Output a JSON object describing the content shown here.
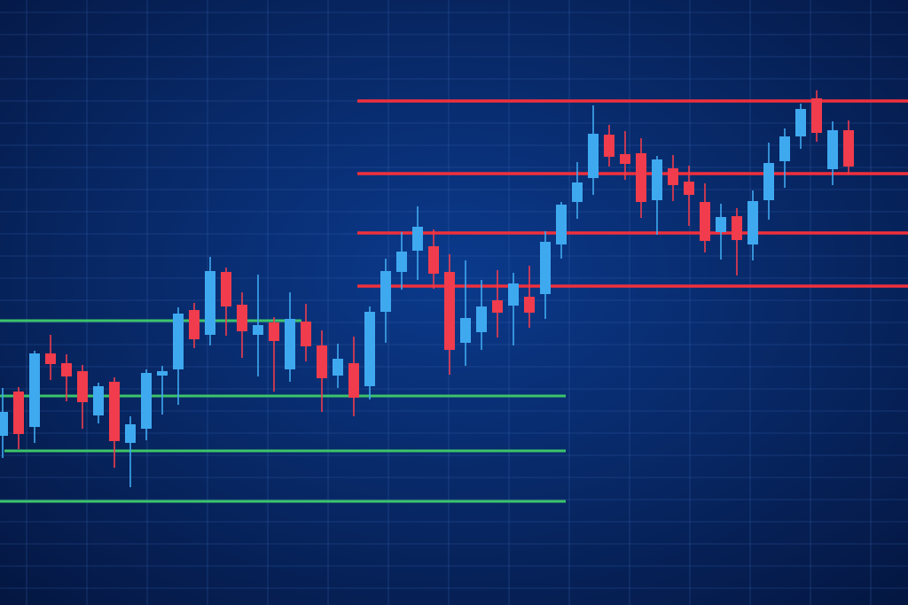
{
  "chart_data": {
    "type": "candlestick",
    "title": "",
    "xlabel": "",
    "ylabel": "",
    "ylim": [
      0,
      120
    ],
    "grid": true,
    "legend": "none",
    "colors": {
      "background_center": "#0b3a8c",
      "background_edge": "#041640",
      "grid": "#3d6bb8",
      "up": "#3fa9f0",
      "down": "#f03c4c",
      "resistance": "#f0303c",
      "support": "#3cc46a"
    },
    "candles_ohlc": [
      [
        21.6,
        32.4,
        16.6,
        27
      ],
      [
        31.6,
        32.6,
        18.6,
        22
      ],
      [
        23.6,
        40.8,
        20,
        40.2
      ],
      [
        40.2,
        44.4,
        34.2,
        37.8
      ],
      [
        38,
        40,
        29.4,
        35
      ],
      [
        36.2,
        37.6,
        23.2,
        29.2
      ],
      [
        26.2,
        33.6,
        24.4,
        32.8
      ],
      [
        33.8,
        34.8,
        14.4,
        20.4
      ],
      [
        20,
        26,
        10,
        24.2
      ],
      [
        23.2,
        36.6,
        20.6,
        35.8
      ],
      [
        35.2,
        37.4,
        26.4,
        36.2
      ],
      [
        36.6,
        50.6,
        28.6,
        49.2
      ],
      [
        50,
        51.6,
        41.4,
        43.4
      ],
      [
        44.4,
        62,
        42,
        58.8
      ],
      [
        58.6,
        59.6,
        44.2,
        50.8
      ],
      [
        51.2,
        54,
        39.2,
        45.2
      ],
      [
        44.4,
        58,
        35,
        46.6
      ],
      [
        47.2,
        48.4,
        31.6,
        43
      ],
      [
        36.6,
        54,
        33.8,
        48
      ],
      [
        47.4,
        51.4,
        38.4,
        41.8
      ],
      [
        42,
        45.4,
        27,
        34.6
      ],
      [
        35.2,
        42.4,
        32.4,
        39
      ],
      [
        38,
        44,
        26,
        30.2
      ],
      [
        32.8,
        50.8,
        29.8,
        49.6
      ],
      [
        49.6,
        61.6,
        42.6,
        58.8
      ],
      [
        58.6,
        67.6,
        54.6,
        63.2
      ],
      [
        63.4,
        73.4,
        56.8,
        68.8
      ],
      [
        64.4,
        68.2,
        54.8,
        58.2
      ],
      [
        58.6,
        62.6,
        35.4,
        41
      ],
      [
        42.6,
        61.2,
        37.4,
        48.2
      ],
      [
        45,
        56.8,
        41,
        50.8
      ],
      [
        52.2,
        59,
        43.8,
        49.4
      ],
      [
        51,
        58.4,
        42,
        56
      ],
      [
        53,
        60,
        46,
        49.4
      ],
      [
        53.6,
        67.8,
        48,
        65.4
      ],
      [
        64.8,
        74.4,
        61.6,
        73.8
      ],
      [
        74.4,
        83.4,
        70.6,
        78.8
      ],
      [
        79.8,
        96.2,
        76,
        89.8
      ],
      [
        89.6,
        91.8,
        82.4,
        84.6
      ],
      [
        85.2,
        90.4,
        79.4,
        83
      ],
      [
        85.4,
        88.8,
        70.8,
        74.4
      ],
      [
        74.8,
        84.8,
        67,
        84
      ],
      [
        82,
        85,
        74.6,
        78.2
      ],
      [
        79,
        82.6,
        69,
        76
      ],
      [
        74.4,
        78.6,
        63,
        65.6
      ],
      [
        67.6,
        74,
        61.4,
        71
      ],
      [
        71.2,
        73,
        57.8,
        65.8
      ],
      [
        64.8,
        77,
        61.2,
        74.6
      ],
      [
        74.8,
        87.8,
        70.4,
        83.2
      ],
      [
        83.6,
        91,
        77.6,
        89.2
      ],
      [
        89.2,
        96.6,
        86.4,
        95.4
      ],
      [
        97.8,
        99.6,
        88,
        90
      ],
      [
        81.8,
        92.6,
        78.2,
        90.6
      ],
      [
        90.6,
        92.8,
        80.6,
        82.4
      ]
    ],
    "resistance_levels": [
      97.2,
      80.8,
      67.4,
      55.4
    ],
    "support_levels": [
      47.6,
      30.6,
      18.2,
      6.8
    ]
  }
}
